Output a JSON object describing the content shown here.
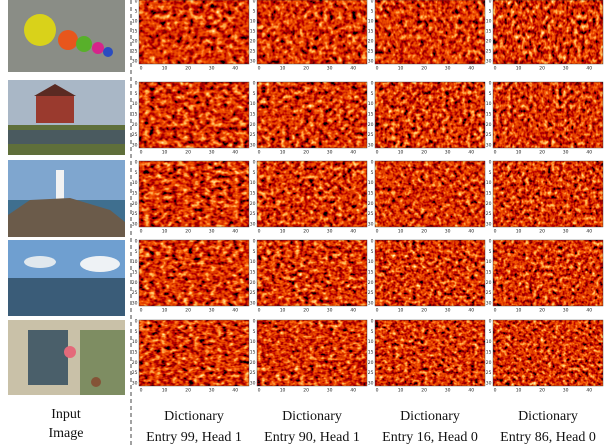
{
  "input_label": [
    "Input",
    "Image"
  ],
  "heatmap_columns": [
    {
      "line1": "Dictionary",
      "line2": "Entry 99, Head 1"
    },
    {
      "line1": "Dictionary",
      "line2": "Entry 90, Head 1"
    },
    {
      "line1": "Dictionary",
      "line2": "Entry 16, Head 0"
    },
    {
      "line1": "Dictionary",
      "line2": "Entry 86, Head 0"
    }
  ],
  "axis": {
    "xticks": [
      0,
      10,
      20,
      30,
      40
    ],
    "yticks": [
      0,
      5,
      10,
      15,
      20,
      25,
      30
    ]
  }
}
